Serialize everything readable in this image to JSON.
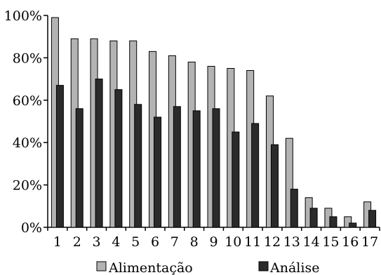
{
  "chart_data": {
    "type": "bar",
    "title": "",
    "xlabel": "",
    "ylabel": "",
    "ylim": [
      0,
      100
    ],
    "yticks": [
      0,
      20,
      40,
      60,
      80,
      100
    ],
    "ytick_labels": [
      "0%",
      "20%",
      "40%",
      "60%",
      "80%",
      "100%"
    ],
    "grid": false,
    "legend_position": "bottom",
    "categories": [
      "1",
      "2",
      "3",
      "4",
      "5",
      "6",
      "7",
      "8",
      "9",
      "10",
      "11",
      "12",
      "13",
      "14",
      "15",
      "16",
      "17"
    ],
    "series": [
      {
        "name": "Alimentação",
        "color": "#b3b3b3",
        "values": [
          99,
          89,
          89,
          88,
          88,
          83,
          81,
          78,
          76,
          75,
          74,
          62,
          42,
          14,
          9,
          5,
          12
        ]
      },
      {
        "name": "Análise",
        "color": "#2b2b2b",
        "values": [
          67,
          56,
          70,
          65,
          58,
          52,
          57,
          55,
          56,
          45,
          49,
          39,
          18,
          9,
          5,
          2,
          8
        ]
      }
    ]
  }
}
